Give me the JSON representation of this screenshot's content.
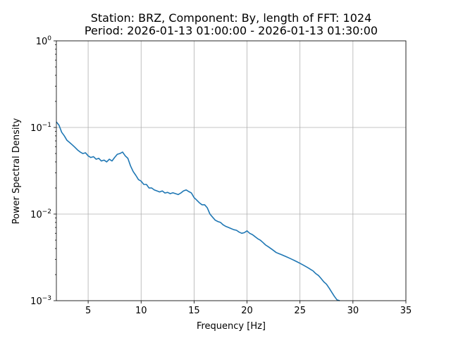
{
  "chart_data": {
    "type": "line",
    "title_line1": "Station: BRZ, Component: By, length of FFT: 1024",
    "title_line2": "Period: 2026-01-13 01:00:00 - 2026-01-13 01:30:00",
    "xlabel": "Frequency [Hz]",
    "ylabel": "Power Spectral Density",
    "xlim": [
      2,
      35
    ],
    "ylim": [
      0.001,
      1
    ],
    "yscale": "log",
    "grid": true,
    "line_color": "#1f77b4",
    "x_ticks": [
      {
        "value": 5,
        "label": "5"
      },
      {
        "value": 10,
        "label": "10"
      },
      {
        "value": 15,
        "label": "15"
      },
      {
        "value": 20,
        "label": "20"
      },
      {
        "value": 25,
        "label": "25"
      },
      {
        "value": 30,
        "label": "30"
      },
      {
        "value": 35,
        "label": "35"
      }
    ],
    "y_ticks": [
      {
        "value": 0.001,
        "base": "10",
        "exp": "−3"
      },
      {
        "value": 0.01,
        "base": "10",
        "exp": "−2"
      },
      {
        "value": 0.1,
        "base": "10",
        "exp": "−1"
      },
      {
        "value": 1,
        "base": "10",
        "exp": "0"
      }
    ],
    "series": [
      {
        "x": [
          2.0,
          2.25,
          2.5,
          2.75,
          3.0,
          3.25,
          3.5,
          3.75,
          4.0,
          4.25,
          4.5,
          4.75,
          5.0,
          5.25,
          5.5,
          5.75,
          6.0,
          6.25,
          6.5,
          6.75,
          7.0,
          7.25,
          7.5,
          7.75,
          8.0,
          8.25,
          8.5,
          8.75,
          9.0,
          9.25,
          9.5,
          9.75,
          10.0,
          10.25,
          10.5,
          10.75,
          11.0,
          11.25,
          11.5,
          11.75,
          12.0,
          12.25,
          12.5,
          12.75,
          13.0,
          13.25,
          13.5,
          13.75,
          14.0,
          14.25,
          14.5,
          14.75,
          15.0,
          15.25,
          15.5,
          15.75,
          16.0,
          16.25,
          16.5,
          16.75,
          17.0,
          17.25,
          17.5,
          17.75,
          18.0,
          18.25,
          18.5,
          18.75,
          19.0,
          19.25,
          19.5,
          19.75,
          20.0,
          20.25,
          20.5,
          20.75,
          21.0,
          21.25,
          21.5,
          21.75,
          22.0,
          22.25,
          22.5,
          22.75,
          23.0,
          23.25,
          23.5,
          23.75,
          24.0,
          24.25,
          24.5,
          24.75,
          25.0,
          25.25,
          25.5,
          25.75,
          26.0,
          26.25,
          26.5,
          26.75,
          27.0,
          27.25,
          27.5,
          27.75,
          28.0,
          28.25,
          28.5,
          28.75
        ],
        "y": [
          0.116,
          0.106,
          0.088,
          0.08,
          0.071,
          0.067,
          0.063,
          0.059,
          0.055,
          0.052,
          0.05,
          0.051,
          0.047,
          0.045,
          0.046,
          0.043,
          0.044,
          0.041,
          0.042,
          0.04,
          0.043,
          0.041,
          0.045,
          0.049,
          0.05,
          0.052,
          0.047,
          0.044,
          0.036,
          0.031,
          0.028,
          0.025,
          0.024,
          0.022,
          0.022,
          0.02,
          0.02,
          0.019,
          0.0185,
          0.018,
          0.0185,
          0.0175,
          0.0178,
          0.0172,
          0.0176,
          0.0172,
          0.0168,
          0.0175,
          0.0185,
          0.019,
          0.0182,
          0.0175,
          0.0155,
          0.0145,
          0.0135,
          0.0128,
          0.0128,
          0.0118,
          0.01,
          0.0092,
          0.0085,
          0.0082,
          0.008,
          0.0075,
          0.0072,
          0.007,
          0.0068,
          0.0066,
          0.0065,
          0.0062,
          0.006,
          0.0061,
          0.0064,
          0.006,
          0.0058,
          0.0055,
          0.0052,
          0.005,
          0.0047,
          0.0044,
          0.0042,
          0.004,
          0.0038,
          0.0036,
          0.0035,
          0.0034,
          0.0033,
          0.0032,
          0.0031,
          0.003,
          0.0029,
          0.0028,
          0.0027,
          0.0026,
          0.0025,
          0.0024,
          0.0023,
          0.0022,
          0.00205,
          0.00195,
          0.0018,
          0.00165,
          0.00155,
          0.0014,
          0.00125,
          0.00112,
          0.00102,
          0.001
        ]
      }
    ]
  }
}
